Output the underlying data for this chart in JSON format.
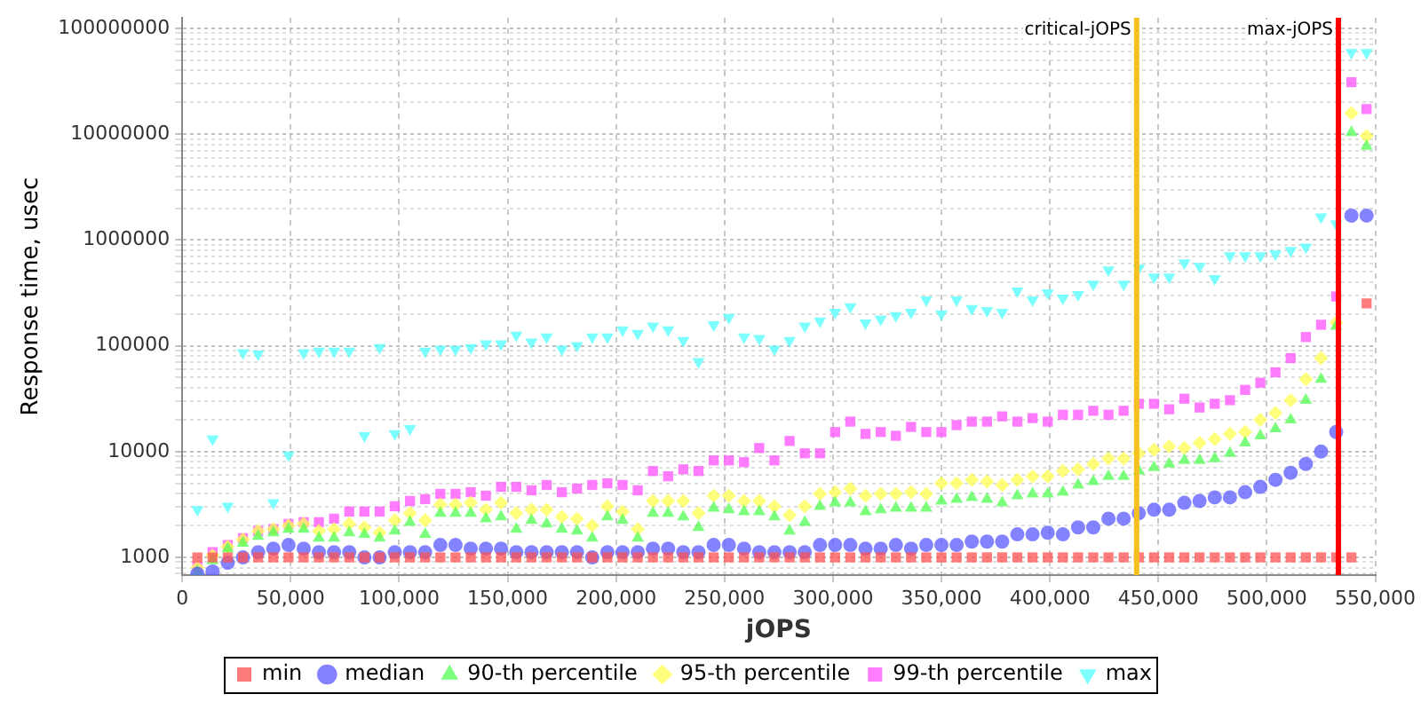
{
  "chart_data": {
    "type": "scatter",
    "xlabel": "jOPS",
    "ylabel": "Response time, usec",
    "log": "y",
    "grid": true,
    "legend": "bottom",
    "x": [
      7000,
      14000,
      21000,
      28000,
      35000,
      42000,
      49000,
      56000,
      63000,
      70000,
      77000,
      84000,
      91000,
      98000,
      105000,
      112000,
      119000,
      126000,
      133000,
      140000,
      147000,
      154000,
      161000,
      168000,
      175000,
      182000,
      189000,
      196000,
      203000,
      210000,
      217000,
      224000,
      231000,
      238000,
      245000,
      252000,
      259000,
      266000,
      273000,
      280000,
      287000,
      294000,
      301000,
      308000,
      315000,
      322000,
      329000,
      336000,
      343000,
      350000,
      357000,
      364000,
      371000,
      378000,
      385000,
      392000,
      399000,
      406000,
      413000,
      420000,
      427000,
      434000,
      441000,
      448000,
      455000,
      462000,
      469000,
      476000,
      483000,
      490000,
      497000,
      504000,
      511000,
      518000,
      525000,
      532000,
      539000,
      546000
    ],
    "xlim": [
      0,
      550000
    ],
    "xticks": [
      {
        "value": 0,
        "label": "0"
      },
      {
        "value": 50000,
        "label": "50,000"
      },
      {
        "value": 100000,
        "label": "100,000"
      },
      {
        "value": 150000,
        "label": "150,000"
      },
      {
        "value": 200000,
        "label": "200,000"
      },
      {
        "value": 250000,
        "label": "250,000"
      },
      {
        "value": 300000,
        "label": "300,000"
      },
      {
        "value": 350000,
        "label": "350,000"
      },
      {
        "value": 400000,
        "label": "400,000"
      },
      {
        "value": 450000,
        "label": "450,000"
      },
      {
        "value": 500000,
        "label": "500,000"
      },
      {
        "value": 550000,
        "label": "550,000"
      }
    ],
    "ylim": [
      680,
      126000000
    ],
    "yticks": [
      {
        "value": 700,
        "label": null
      },
      {
        "value": 800,
        "label": null
      },
      {
        "value": 900,
        "label": null
      },
      1000,
      {
        "value": 2000,
        "label": null
      },
      {
        "value": 3000,
        "label": null
      },
      {
        "value": 4000,
        "label": null
      },
      {
        "value": 5000,
        "label": null
      },
      {
        "value": 6000,
        "label": null
      },
      {
        "value": 7000,
        "label": null
      },
      {
        "value": 8000,
        "label": null
      },
      {
        "value": 9000,
        "label": null
      },
      10000,
      {
        "value": 20000,
        "label": null
      },
      {
        "value": 30000,
        "label": null
      },
      {
        "value": 40000,
        "label": null
      },
      {
        "value": 50000,
        "label": null
      },
      {
        "value": 60000,
        "label": null
      },
      {
        "value": 70000,
        "label": null
      },
      {
        "value": 80000,
        "label": null
      },
      {
        "value": 90000,
        "label": null
      },
      100000,
      {
        "value": 200000,
        "label": null
      },
      {
        "value": 300000,
        "label": null
      },
      {
        "value": 400000,
        "label": null
      },
      {
        "value": 500000,
        "label": null
      },
      {
        "value": 600000,
        "label": null
      },
      {
        "value": 700000,
        "label": null
      },
      {
        "value": 800000,
        "label": null
      },
      {
        "value": 900000,
        "label": null
      },
      1000000,
      {
        "value": 2000000,
        "label": null
      },
      {
        "value": 3000000,
        "label": null
      },
      {
        "value": 4000000,
        "label": null
      },
      {
        "value": 5000000,
        "label": null
      },
      {
        "value": 6000000,
        "label": null
      },
      {
        "value": 7000000,
        "label": null
      },
      {
        "value": 8000000,
        "label": null
      },
      {
        "value": 9000000,
        "label": null
      },
      10000000,
      {
        "value": 20000000,
        "label": null
      },
      {
        "value": 30000000,
        "label": null
      },
      {
        "value": 40000000,
        "label": null
      },
      {
        "value": 50000000,
        "label": null
      },
      {
        "value": 60000000,
        "label": null
      },
      {
        "value": 70000000,
        "label": null
      },
      {
        "value": 80000000,
        "label": null
      },
      {
        "value": 90000000,
        "label": null
      },
      100000000
    ],
    "ref_lines": [
      {
        "axis": "x",
        "value": 440000,
        "label": "critical-jOPS",
        "color": "#f5c020"
      },
      {
        "axis": "x",
        "value": 533000,
        "label": "max-jOPS",
        "color": "#ff0000"
      }
    ],
    "series": [
      {
        "name": "min",
        "color": "#ff5050",
        "marker": "square",
        "values": [
          1000,
          1000,
          1000,
          1000,
          1000,
          1000,
          1000,
          1000,
          1000,
          1000,
          1000,
          1000,
          1000,
          1000,
          1000,
          1000,
          1000,
          1000,
          1000,
          1000,
          1000,
          1000,
          1000,
          1000,
          1000,
          1000,
          1000,
          1000,
          1000,
          1000,
          1000,
          1000,
          1000,
          1000,
          1000,
          1000,
          1000,
          1000,
          1000,
          1000,
          1000,
          1000,
          1000,
          1000,
          1000,
          1000,
          1000,
          1000,
          1000,
          1000,
          1000,
          1000,
          1000,
          1000,
          1000,
          1000,
          1000,
          1000,
          1000,
          1000,
          1000,
          1000,
          1000,
          1000,
          1000,
          1000,
          1000,
          1000,
          1000,
          1000,
          1000,
          1000,
          1000,
          1000,
          1000,
          1000,
          1000,
          251000
        ]
      },
      {
        "name": "median",
        "color": "#5a5aff",
        "marker": "circle",
        "values": [
          700,
          735,
          890,
          1000,
          1120,
          1210,
          1310,
          1210,
          1120,
          1120,
          1120,
          1000,
          1000,
          1120,
          1120,
          1120,
          1310,
          1310,
          1210,
          1210,
          1210,
          1120,
          1120,
          1120,
          1120,
          1120,
          1000,
          1120,
          1120,
          1120,
          1210,
          1210,
          1120,
          1120,
          1310,
          1310,
          1210,
          1120,
          1120,
          1120,
          1120,
          1310,
          1310,
          1310,
          1210,
          1210,
          1310,
          1210,
          1310,
          1310,
          1310,
          1410,
          1410,
          1410,
          1650,
          1650,
          1710,
          1650,
          1920,
          1920,
          2320,
          2320,
          2610,
          2820,
          2820,
          3280,
          3410,
          3690,
          3690,
          4130,
          4640,
          5410,
          6310,
          7640,
          10000,
          15300,
          1700000,
          1700000
        ]
      },
      {
        "name": "90-th percentile",
        "color": "#50ff50",
        "marker": "triangle",
        "values": [
          735,
          930,
          1210,
          1360,
          1580,
          1710,
          1850,
          1850,
          1520,
          1520,
          1710,
          1650,
          1520,
          1780,
          2150,
          1650,
          2610,
          2610,
          2610,
          2320,
          2420,
          1850,
          2240,
          2070,
          1850,
          1780,
          1520,
          2420,
          2240,
          1520,
          2610,
          2610,
          2420,
          1920,
          2930,
          2820,
          2710,
          2710,
          2420,
          1780,
          2150,
          3040,
          3280,
          3280,
          2710,
          2820,
          2930,
          2930,
          2930,
          3410,
          3550,
          3690,
          3550,
          3280,
          3830,
          3980,
          3980,
          4130,
          4830,
          5210,
          5840,
          5840,
          6550,
          7080,
          7640,
          8250,
          8250,
          8580,
          9630,
          12100,
          14100,
          16500,
          20000,
          30600,
          48300,
          153000,
          10400000,
          7700000
        ]
      },
      {
        "name": "95-th percentile",
        "color": "#ffff50",
        "marker": "diamond",
        "values": [
          800,
          1040,
          1260,
          1470,
          1780,
          1850,
          2000,
          2070,
          1780,
          1850,
          2070,
          1920,
          1710,
          2240,
          2610,
          2240,
          3160,
          3160,
          3280,
          2820,
          3280,
          2610,
          2820,
          2820,
          2420,
          2320,
          2000,
          3040,
          2710,
          1850,
          3410,
          3410,
          3410,
          2610,
          3830,
          3830,
          3410,
          3410,
          3040,
          2510,
          3040,
          3980,
          4130,
          4470,
          3830,
          3980,
          3980,
          4130,
          3980,
          5010,
          5010,
          5410,
          5210,
          4830,
          5410,
          5840,
          5840,
          6550,
          6800,
          7640,
          8580,
          8580,
          9630,
          10400,
          11200,
          10800,
          12100,
          13100,
          14700,
          15300,
          20000,
          23200,
          30600,
          48300,
          76500,
          166000,
          15800000,
          9600000
        ]
      },
      {
        "name": "99-th percentile",
        "color": "#ff50ff",
        "marker": "square",
        "values": [
          820,
          1120,
          1310,
          1520,
          1780,
          1850,
          2070,
          2150,
          2150,
          2320,
          2710,
          2710,
          2710,
          3040,
          3410,
          3550,
          3980,
          3980,
          4130,
          3830,
          4640,
          4640,
          4300,
          4830,
          4130,
          4470,
          4830,
          5010,
          4830,
          4300,
          6550,
          5840,
          6800,
          6550,
          8250,
          8250,
          7940,
          10800,
          8250,
          12600,
          9630,
          9630,
          15300,
          19200,
          14700,
          15300,
          14100,
          17100,
          15300,
          15300,
          17800,
          19200,
          19200,
          21500,
          19200,
          20700,
          19200,
          22300,
          22300,
          24300,
          22300,
          24300,
          28300,
          28300,
          25100,
          31600,
          26100,
          28300,
          30600,
          38300,
          44700,
          56200,
          76500,
          121000,
          158000,
          292000,
          31000000,
          17300000
        ]
      },
      {
        "name": "max",
        "color": "#50ffff",
        "marker": "triangle-down",
        "values": [
          2820,
          13100,
          3040,
          85800,
          83500,
          3280,
          9280,
          85800,
          89000,
          89000,
          89000,
          14100,
          96000,
          14700,
          16500,
          89000,
          92800,
          92800,
          96000,
          104000,
          104000,
          126000,
          108000,
          121000,
          92800,
          100000,
          121000,
          121000,
          141000,
          131000,
          153000,
          141000,
          112000,
          70800,
          158000,
          185000,
          121000,
          117000,
          92800,
          112000,
          153000,
          171000,
          207000,
          233000,
          164000,
          178000,
          192000,
          207000,
          271000,
          200000,
          271000,
          224000,
          215000,
          207000,
          329000,
          271000,
          316000,
          281000,
          304000,
          381000,
          521000,
          381000,
          541000,
          446000,
          446000,
          608000,
          562000,
          431000,
          708000,
          708000,
          708000,
          736000,
          794000,
          853000,
          1650000,
          1410000,
          59000000,
          59000000
        ]
      }
    ]
  }
}
